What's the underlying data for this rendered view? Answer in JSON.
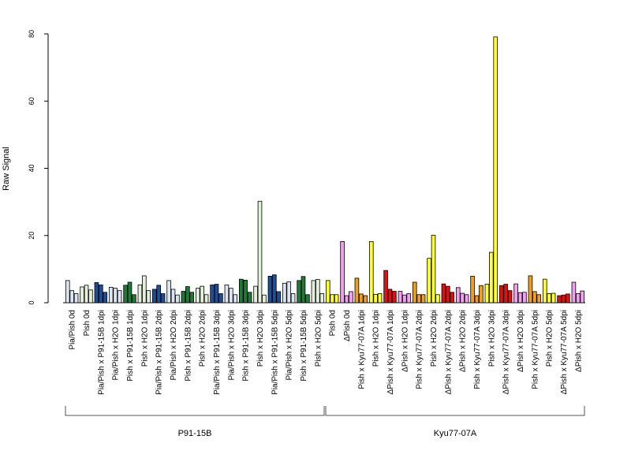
{
  "chart_data": {
    "type": "bar",
    "ylabel": "Raw Signal",
    "ylim": [
      0,
      80
    ],
    "yticks": [
      "0",
      "20",
      "40",
      "60",
      "80"
    ],
    "bars_per_category": 3,
    "categories": [
      {
        "label": "Pia/Pish 0d",
        "color": "#dce6f2",
        "values": [
          6.6,
          3.6,
          2.7
        ]
      },
      {
        "label": "Pish 0d",
        "color": "#e5f0dc",
        "values": [
          4.7,
          5.2,
          3.8
        ]
      },
      {
        "label": "Pia/Pish x P91-15B 1dpi",
        "color": "#1f4e96",
        "values": [
          6.0,
          5.3,
          3.1
        ]
      },
      {
        "label": "Pia/Pish x H2O 1dpi",
        "color": "#dce6f2",
        "values": [
          4.6,
          4.3,
          3.6
        ]
      },
      {
        "label": "Pish x P91-15B 1dpi",
        "color": "#1f7a3a",
        "values": [
          5.2,
          6.1,
          2.4
        ]
      },
      {
        "label": "Pish x H2O 1dpi",
        "color": "#e5f0dc",
        "values": [
          5.3,
          8.0,
          3.6
        ]
      },
      {
        "label": "Pia/Pish x P91-15B 2dpi",
        "color": "#1f4e96",
        "values": [
          4.0,
          5.2,
          2.7
        ]
      },
      {
        "label": "Pia/Pish x H2O 2dpi",
        "color": "#dce6f2",
        "values": [
          6.6,
          4.0,
          2.3
        ]
      },
      {
        "label": "Pish x P91-15B 2dpi",
        "color": "#1f7a3a",
        "values": [
          3.4,
          4.8,
          3.1
        ]
      },
      {
        "label": "Pish x H2O 2dpi",
        "color": "#e5f0dc",
        "values": [
          4.3,
          4.9,
          2.4
        ]
      },
      {
        "label": "Pia/Pish x P91-15B 3dpi",
        "color": "#1f4e96",
        "values": [
          5.3,
          5.5,
          2.7
        ]
      },
      {
        "label": "Pia/Pish x H2O 3dpi",
        "color": "#dce6f2",
        "values": [
          5.3,
          4.3,
          2.4
        ]
      },
      {
        "label": "Pish x P91-15B 3dpi",
        "color": "#1f7a3a",
        "values": [
          7.0,
          6.7,
          3.1
        ]
      },
      {
        "label": "Pish x H2O 3dpi",
        "color": "#e5f0dc",
        "values": [
          4.9,
          30.2,
          2.3
        ]
      },
      {
        "label": "Pia/Pish x P91-15B 5dpi",
        "color": "#1f4e96",
        "values": [
          7.9,
          8.3,
          3.3
        ]
      },
      {
        "label": "Pia/Pish x H2O 5dpi",
        "color": "#dce6f2",
        "values": [
          5.8,
          6.2,
          2.7
        ]
      },
      {
        "label": "Pish x P91-15B 5dpi",
        "color": "#1f7a3a",
        "values": [
          6.6,
          7.8,
          2.4
        ]
      },
      {
        "label": "Pish x H2O 5dpi",
        "color": "#e5f0dc",
        "values": [
          6.6,
          6.9,
          2.7
        ]
      },
      {
        "label": "Pish 0d",
        "color": "#ffff33",
        "values": [
          6.6,
          2.4,
          2.4
        ]
      },
      {
        "label": "ΔPish 0d",
        "color": "#f4a0f0",
        "values": [
          18.2,
          2.1,
          3.3
        ]
      },
      {
        "label": "Pish x Kyu77-07A 1dpi",
        "color": "#f0a020",
        "values": [
          7.3,
          2.6,
          2.1
        ]
      },
      {
        "label": "Pish x H2O 1dpi",
        "color": "#ffff33",
        "values": [
          18.2,
          2.5,
          2.7
        ]
      },
      {
        "label": "ΔPish x Kyu77-07A 1dpi",
        "color": "#e01010",
        "values": [
          9.6,
          4.0,
          3.4
        ]
      },
      {
        "label": "ΔPish x H2O 1dpi",
        "color": "#f4a0f0",
        "values": [
          3.4,
          2.3,
          2.7
        ]
      },
      {
        "label": "Pish x Kyu77-07A 2dpi",
        "color": "#f0a020",
        "values": [
          6.1,
          2.4,
          2.4
        ]
      },
      {
        "label": "Pish x H2O 2dpi",
        "color": "#ffff33",
        "values": [
          13.2,
          20.1,
          2.4
        ]
      },
      {
        "label": "ΔPish x Kyu77-07A 2dpi",
        "color": "#e01010",
        "values": [
          5.6,
          4.9,
          3.1
        ]
      },
      {
        "label": "ΔPish x H2O 2dpi",
        "color": "#f4a0f0",
        "values": [
          4.5,
          2.8,
          2.4
        ]
      },
      {
        "label": "Pish x Kyu77-07A 3dpi",
        "color": "#f0a020",
        "values": [
          7.9,
          2.1,
          5.1
        ]
      },
      {
        "label": "Pish x H2O 3dpi",
        "color": "#ffff33",
        "values": [
          5.5,
          15.0,
          79.1
        ]
      },
      {
        "label": "ΔPish x Kyu77-07A 3dpi",
        "color": "#e01010",
        "values": [
          5.1,
          5.5,
          3.6
        ]
      },
      {
        "label": "ΔPish x H2O 3dpi",
        "color": "#f4a0f0",
        "values": [
          5.6,
          3.0,
          3.1
        ]
      },
      {
        "label": "Pish x Kyu77-07A 5dpi",
        "color": "#f0a020",
        "values": [
          8.0,
          3.3,
          2.4
        ]
      },
      {
        "label": "Pish x H2O 5dpi",
        "color": "#ffff33",
        "values": [
          7.0,
          2.7,
          2.8
        ]
      },
      {
        "label": "ΔPish x Kyu77-07A 5dpi",
        "color": "#e01010",
        "values": [
          2.1,
          2.3,
          2.6
        ]
      },
      {
        "label": "ΔPish x H2O 5dpi",
        "color": "#f4a0f0",
        "values": [
          6.1,
          2.7,
          3.5
        ]
      }
    ],
    "groups": [
      {
        "label": "P91-15B",
        "first": 0,
        "last": 17
      },
      {
        "label": "Kyu77-07A",
        "first": 18,
        "last": 35
      }
    ]
  }
}
